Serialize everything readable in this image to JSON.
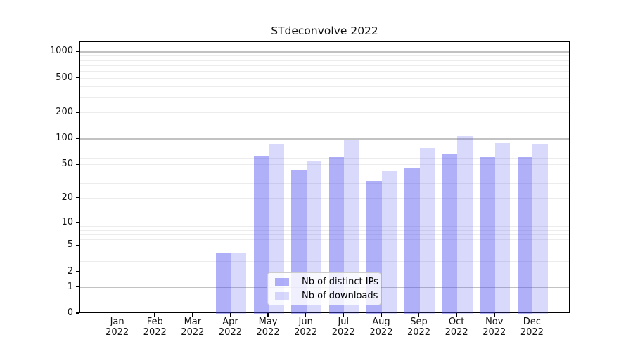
{
  "figure": {
    "background": "#ffffff"
  },
  "chart_data": {
    "type": "bar",
    "title": "STdeconvolve 2022",
    "categories": [
      "Jan",
      "Feb",
      "Mar",
      "Apr",
      "May",
      "Jun",
      "Jul",
      "Aug",
      "Sep",
      "Oct",
      "Nov",
      "Dec"
    ],
    "x_tick_second_line": "2022",
    "series": [
      {
        "name": "Nb of distinct IPs",
        "fill": "rgba(80,80,240,0.45)",
        "approx_hex": "#aeaef7",
        "values": [
          0,
          0,
          0,
          4,
          64,
          44,
          62,
          32,
          46,
          67,
          62,
          62
        ]
      },
      {
        "name": "Nb of downloads",
        "fill": "rgba(80,80,240,0.22)",
        "approx_hex": "#dcdcfa",
        "values": [
          0,
          0,
          0,
          4,
          88,
          55,
          98,
          43,
          79,
          108,
          90,
          88
        ]
      }
    ],
    "y_axis": {
      "scale": "log1p",
      "max": 1300,
      "min": 0,
      "ticks": [
        1000,
        500,
        200,
        100,
        50,
        20,
        10,
        5,
        2,
        1,
        0
      ]
    },
    "grid": {
      "on": true,
      "major_values": [
        1,
        10,
        100,
        1000
      ],
      "minor_values": [
        2,
        3,
        4,
        5,
        6,
        7,
        8,
        9,
        20,
        30,
        40,
        50,
        60,
        70,
        80,
        90,
        200,
        300,
        400,
        500,
        600,
        700,
        800,
        900
      ],
      "major_color": "#c2c2c2",
      "minor_color": "#ececec"
    },
    "legend": {
      "position": "lower-center"
    },
    "axis_color": "#000000"
  }
}
